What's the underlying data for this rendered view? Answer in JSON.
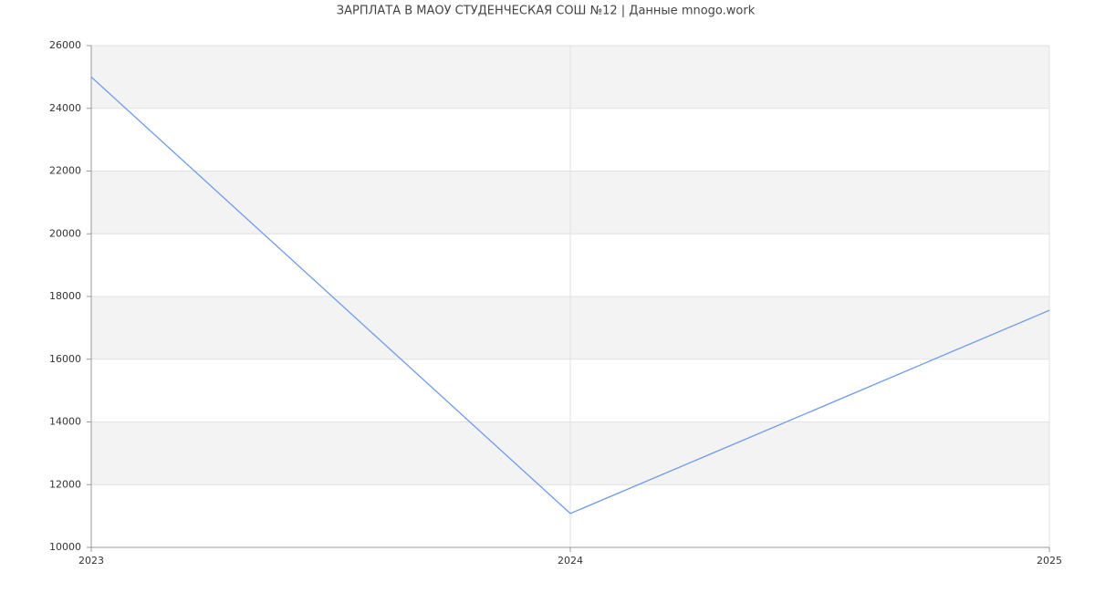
{
  "chart_data": {
    "type": "line",
    "title": "ЗАРПЛАТА В МАОУ СТУДЕНЧЕСКАЯ СОШ №12 | Данные mnogo.work",
    "x": [
      2023,
      2024,
      2025
    ],
    "series": [
      {
        "color": "#6f9be8",
        "values": [
          25000,
          11080,
          17560
        ]
      }
    ],
    "xlim": [
      2023,
      2025
    ],
    "xticks": [
      2023,
      2024,
      2025
    ],
    "ylim": [
      10000,
      26000
    ],
    "yticks": [
      10000,
      12000,
      14000,
      16000,
      18000,
      20000,
      22000,
      24000,
      26000
    ],
    "grid": true
  }
}
